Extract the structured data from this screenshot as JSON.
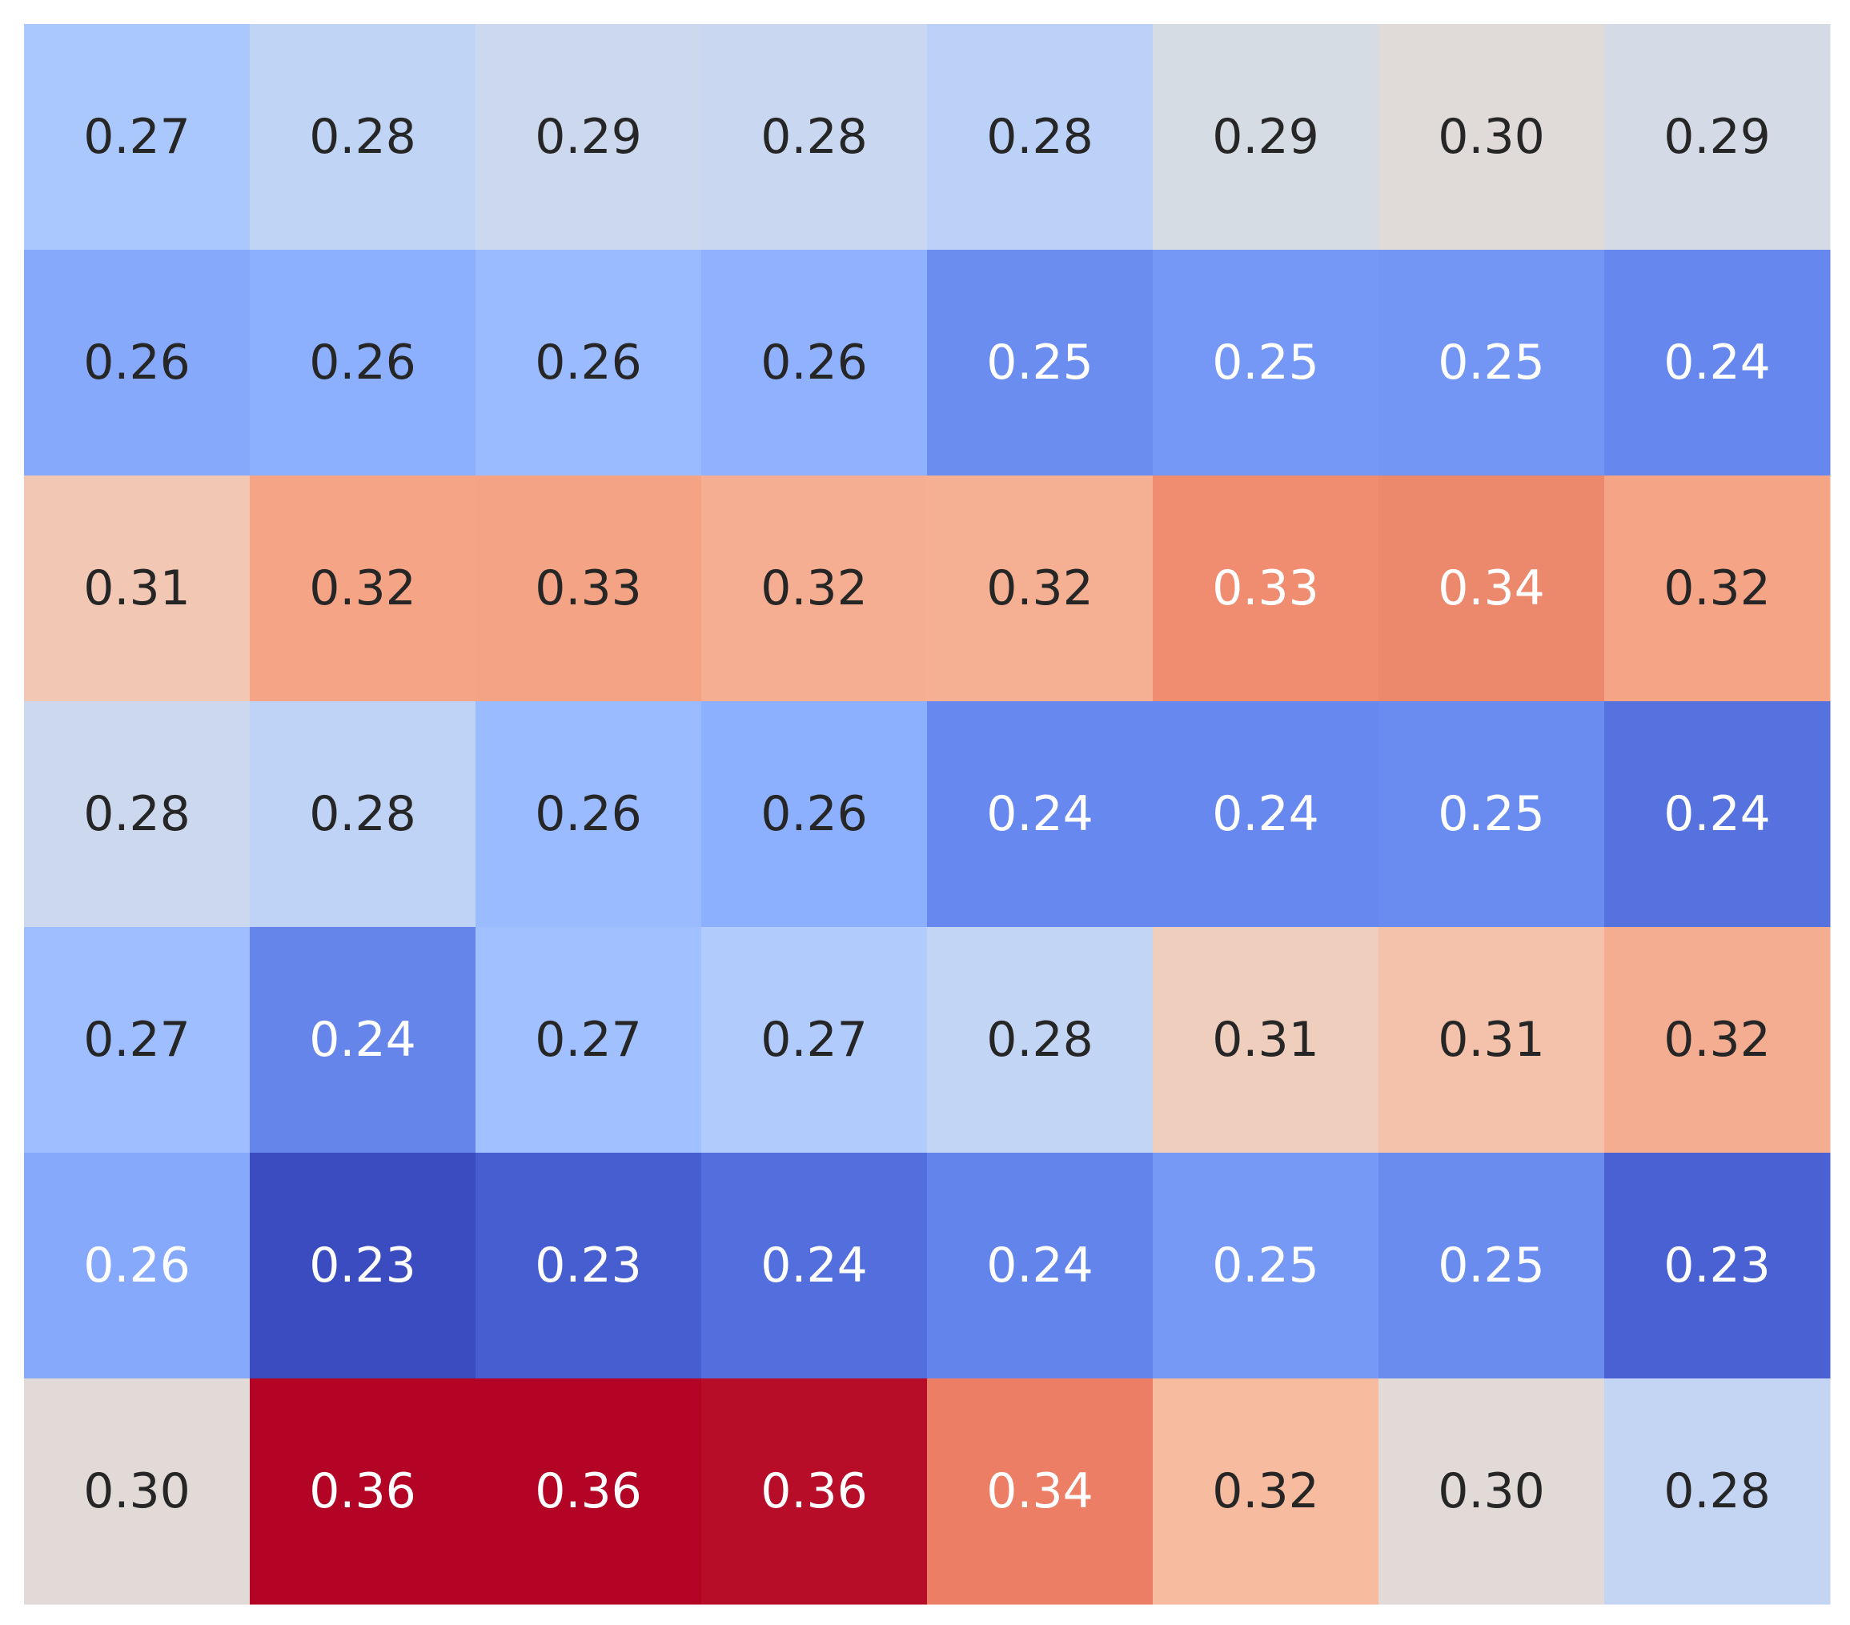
{
  "chart_data": {
    "type": "heatmap",
    "title": "",
    "xlabel": "",
    "ylabel": "",
    "colormap": "coolwarm",
    "vmin": 0.23,
    "vmax": 0.36,
    "n_rows": 7,
    "n_cols": 8,
    "values": [
      [
        0.27,
        0.28,
        0.29,
        0.28,
        0.28,
        0.29,
        0.3,
        0.29
      ],
      [
        0.26,
        0.26,
        0.26,
        0.26,
        0.25,
        0.25,
        0.25,
        0.24
      ],
      [
        0.31,
        0.32,
        0.33,
        0.32,
        0.32,
        0.33,
        0.34,
        0.32
      ],
      [
        0.28,
        0.28,
        0.26,
        0.26,
        0.24,
        0.24,
        0.25,
        0.24
      ],
      [
        0.27,
        0.24,
        0.27,
        0.27,
        0.28,
        0.31,
        0.31,
        0.32
      ],
      [
        0.26,
        0.23,
        0.23,
        0.24,
        0.24,
        0.25,
        0.25,
        0.23
      ],
      [
        0.3,
        0.36,
        0.36,
        0.36,
        0.34,
        0.32,
        0.3,
        0.28
      ]
    ],
    "labels": [
      [
        "0.27",
        "0.28",
        "0.29",
        "0.28",
        "0.28",
        "0.29",
        "0.30",
        "0.29"
      ],
      [
        "0.26",
        "0.26",
        "0.26",
        "0.26",
        "0.25",
        "0.25",
        "0.25",
        "0.24"
      ],
      [
        "0.31",
        "0.32",
        "0.33",
        "0.32",
        "0.32",
        "0.33",
        "0.34",
        "0.32"
      ],
      [
        "0.28",
        "0.28",
        "0.26",
        "0.26",
        "0.24",
        "0.24",
        "0.25",
        "0.24"
      ],
      [
        "0.27",
        "0.24",
        "0.27",
        "0.27",
        "0.28",
        "0.31",
        "0.31",
        "0.32"
      ],
      [
        "0.26",
        "0.23",
        "0.23",
        "0.24",
        "0.24",
        "0.25",
        "0.25",
        "0.23"
      ],
      [
        "0.30",
        "0.36",
        "0.36",
        "0.36",
        "0.34",
        "0.32",
        "0.30",
        "0.28"
      ]
    ],
    "colors": [
      [
        "#abc8fd",
        "#c0d4f5",
        "#cbd8ee",
        "#c9d7f0",
        "#bbd1f8",
        "#d6dce4",
        "#e0dbd8",
        "#d4dbe6"
      ],
      [
        "#86a9fc",
        "#8db0fe",
        "#9abbff",
        "#8fb1fe",
        "#6b8df0",
        "#7597f6",
        "#7396f5",
        "#6687ed"
      ],
      [
        "#f2c8b4",
        "#f5a486",
        "#f4a384",
        "#f5ae91",
        "#f5af93",
        "#f08c6f",
        "#ec886b",
        "#f6a486"
      ],
      [
        "#cbd8ee",
        "#bfd3f6",
        "#9abbff",
        "#8caffe",
        "#6788ee",
        "#6788ee",
        "#6a8bef",
        "#5572df"
      ],
      [
        "#9ebeff",
        "#6585ea",
        "#a0c0ff",
        "#b1cbfc",
        "#c3d5f4",
        "#efcebd",
        "#f4c2aa",
        "#f4ad91"
      ],
      [
        "#86a9fc",
        "#3b4cc0",
        "#465ecf",
        "#536edd",
        "#6384eb",
        "#7699f6",
        "#6a8cef",
        "#4961d2"
      ],
      [
        "#e1dad6",
        "#b40426",
        "#b40426",
        "#b70d28",
        "#ec7e65",
        "#f7bba0",
        "#e1dad6",
        "#c4d5f3"
      ]
    ],
    "text_colors": [
      [
        "#262626",
        "#262626",
        "#262626",
        "#262626",
        "#262626",
        "#262626",
        "#262626",
        "#262626"
      ],
      [
        "#262626",
        "#262626",
        "#262626",
        "#262626",
        "#ffffff",
        "#ffffff",
        "#ffffff",
        "#ffffff"
      ],
      [
        "#262626",
        "#262626",
        "#262626",
        "#262626",
        "#262626",
        "#ffffff",
        "#ffffff",
        "#262626"
      ],
      [
        "#262626",
        "#262626",
        "#262626",
        "#262626",
        "#ffffff",
        "#ffffff",
        "#ffffff",
        "#ffffff"
      ],
      [
        "#262626",
        "#ffffff",
        "#262626",
        "#262626",
        "#262626",
        "#262626",
        "#262626",
        "#262626"
      ],
      [
        "#ffffff",
        "#ffffff",
        "#ffffff",
        "#ffffff",
        "#ffffff",
        "#ffffff",
        "#ffffff",
        "#ffffff"
      ],
      [
        "#262626",
        "#ffffff",
        "#ffffff",
        "#ffffff",
        "#ffffff",
        "#262626",
        "#262626",
        "#262626"
      ]
    ]
  }
}
